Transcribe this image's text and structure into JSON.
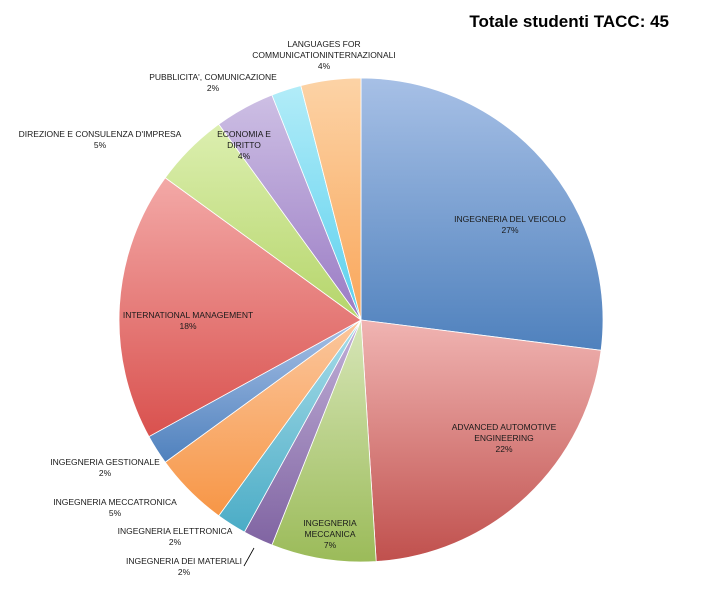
{
  "chart_data": {
    "type": "pie",
    "title": "Totale studenti TACC: 45",
    "slices": [
      {
        "label": [
          "INGEGNERIA DEL VEICOLO"
        ],
        "percent_label": "27%",
        "value": 27,
        "color": "#4f81bd",
        "color_light": "#a7c0e6"
      },
      {
        "label": [
          "ADVANCED AUTOMOTIVE",
          "ENGINEERING"
        ],
        "percent_label": "22%",
        "value": 22,
        "color": "#c0504d",
        "color_light": "#f0b4b2"
      },
      {
        "label": [
          "INGEGNERIA",
          "MECCANICA"
        ],
        "percent_label": "7%",
        "value": 7,
        "color": "#9bbb59",
        "color_light": "#d7e6b8"
      },
      {
        "label": [
          "INGEGNERIA DEI MATERIALI"
        ],
        "percent_label": "2%",
        "value": 2,
        "color": "#8064a2",
        "color_light": "#c1b0d8"
      },
      {
        "label": [
          "INGEGNERIA ELETTRONICA"
        ],
        "percent_label": "2%",
        "value": 2,
        "color": "#4bacc6",
        "color_light": "#a9dde9"
      },
      {
        "label": [
          "INGEGNERIA MECCATRONICA"
        ],
        "percent_label": "5%",
        "value": 5,
        "color": "#f79646",
        "color_light": "#fbc79e"
      },
      {
        "label": [
          "INGEGNERIA GESTIONALE"
        ],
        "percent_label": "2%",
        "value": 2,
        "color": "#4f81bd",
        "color_light": "#a7c0e6"
      },
      {
        "label": [
          "INTERNATIONAL MANAGEMENT"
        ],
        "percent_label": "18%",
        "value": 18,
        "color": "#d9514e",
        "color_light": "#f3a9a7"
      },
      {
        "label": [
          "DIREZIONE E CONSULENZA D'IMPRESA"
        ],
        "percent_label": "5%",
        "value": 5,
        "color": "#b5d56a",
        "color_light": "#dcefb0"
      },
      {
        "label": [
          "ECONOMIA E",
          "DIRITTO"
        ],
        "percent_label": "4%",
        "value": 4,
        "color": "#9a7bc4",
        "color_light": "#cdbfe4"
      },
      {
        "label": [
          "PUBBLICITA', COMUNICAZIONE"
        ],
        "percent_label": "2%",
        "value": 2,
        "color": "#5bd0ee",
        "color_light": "#b2ecf8"
      },
      {
        "label": [
          "LANGUAGES FOR",
          "COMMUNICATIONINTERNAZIONALI"
        ],
        "percent_label": "4%",
        "value": 4,
        "color": "#f9a65a",
        "color_light": "#fcd3a6"
      }
    ]
  }
}
